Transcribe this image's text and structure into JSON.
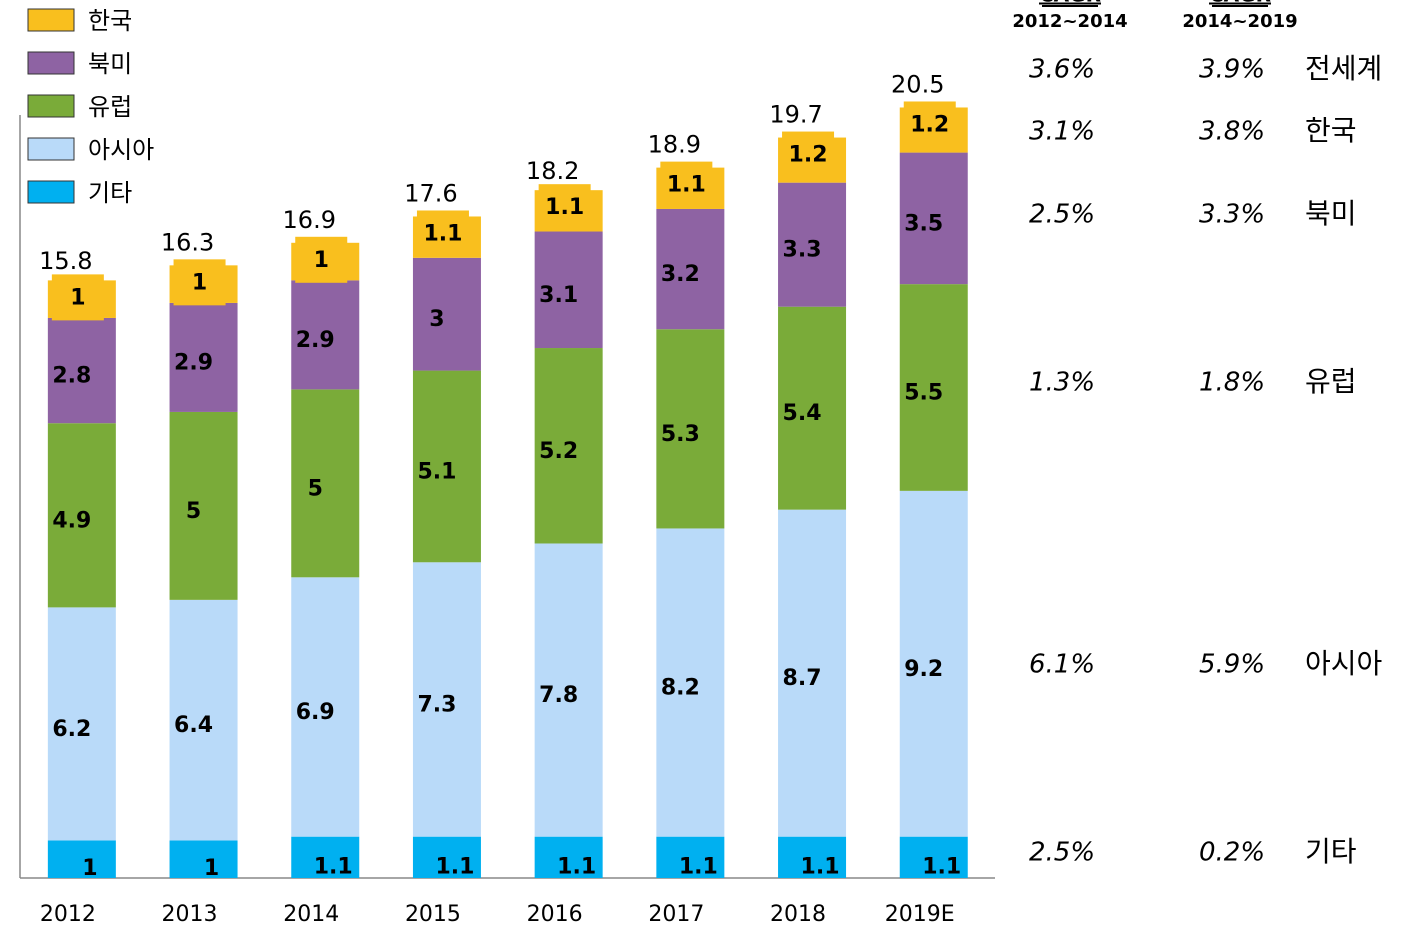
{
  "chart_data": {
    "type": "stacked_bar",
    "categories": [
      "2012",
      "2013",
      "2014",
      "2015",
      "2016",
      "2017",
      "2018",
      "2019E"
    ],
    "series": [
      {
        "name": "기타",
        "color": "#00b0f0",
        "values": [
          1.0,
          1.0,
          1.1,
          1.1,
          1.1,
          1.1,
          1.1,
          1.1
        ]
      },
      {
        "name": "아시아",
        "color": "#b9daf9",
        "values": [
          6.2,
          6.4,
          6.9,
          7.3,
          7.8,
          8.2,
          8.7,
          9.2
        ]
      },
      {
        "name": "유럽",
        "color": "#7aab39",
        "values": [
          4.9,
          5.0,
          5.0,
          5.1,
          5.2,
          5.3,
          5.4,
          5.5
        ]
      },
      {
        "name": "북미",
        "color": "#8e63a3",
        "values": [
          2.8,
          2.9,
          2.9,
          3.0,
          3.1,
          3.2,
          3.3,
          3.5
        ]
      },
      {
        "name": "한국",
        "color": "#f9bf1e",
        "values": [
          1.0,
          1.0,
          1.0,
          1.1,
          1.1,
          1.1,
          1.2,
          1.2
        ]
      }
    ],
    "totals": [
      15.8,
      16.3,
      16.9,
      17.6,
      18.2,
      18.9,
      19.7,
      20.5
    ],
    "ylim": [
      0,
      20.3
    ],
    "cagr_table": {
      "title": "CAGR",
      "headers": [
        "2012~2014",
        "2014~2019"
      ],
      "rows": [
        {
          "label": "전세계",
          "values": [
            "3.6%",
            "3.9%"
          ]
        },
        {
          "label": "한국",
          "values": [
            "3.1%",
            "3.8%"
          ]
        },
        {
          "label": "북미",
          "values": [
            "2.5%",
            "3.3%"
          ]
        },
        {
          "label": "유럽",
          "values": [
            "1.3%",
            "1.8%"
          ]
        },
        {
          "label": "아시아",
          "values": [
            "6.1%",
            "5.9%"
          ]
        },
        {
          "label": "기타",
          "values": [
            "2.5%",
            "0.2%"
          ]
        }
      ]
    }
  }
}
